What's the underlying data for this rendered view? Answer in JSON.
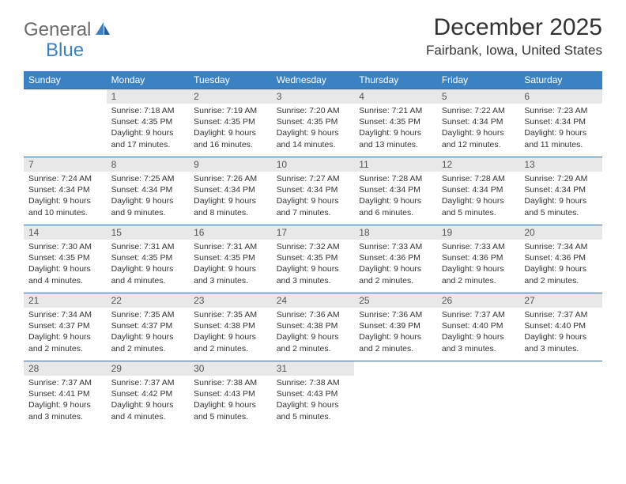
{
  "logo": {
    "general": "General",
    "blue": "Blue"
  },
  "title": "December 2025",
  "location": "Fairbank, Iowa, United States",
  "colors": {
    "header_bg": "#3b82c4",
    "header_text": "#ffffff",
    "daynum_bg": "#e8e8e8",
    "border": "#3b6a9a",
    "logo_gray": "#6b6b6b",
    "logo_blue": "#3b82c4"
  },
  "day_names": [
    "Sunday",
    "Monday",
    "Tuesday",
    "Wednesday",
    "Thursday",
    "Friday",
    "Saturday"
  ],
  "first_weekday_offset": 1,
  "days": [
    {
      "n": 1,
      "sunrise": "7:18 AM",
      "sunset": "4:35 PM",
      "daylight": "9 hours and 17 minutes."
    },
    {
      "n": 2,
      "sunrise": "7:19 AM",
      "sunset": "4:35 PM",
      "daylight": "9 hours and 16 minutes."
    },
    {
      "n": 3,
      "sunrise": "7:20 AM",
      "sunset": "4:35 PM",
      "daylight": "9 hours and 14 minutes."
    },
    {
      "n": 4,
      "sunrise": "7:21 AM",
      "sunset": "4:35 PM",
      "daylight": "9 hours and 13 minutes."
    },
    {
      "n": 5,
      "sunrise": "7:22 AM",
      "sunset": "4:34 PM",
      "daylight": "9 hours and 12 minutes."
    },
    {
      "n": 6,
      "sunrise": "7:23 AM",
      "sunset": "4:34 PM",
      "daylight": "9 hours and 11 minutes."
    },
    {
      "n": 7,
      "sunrise": "7:24 AM",
      "sunset": "4:34 PM",
      "daylight": "9 hours and 10 minutes."
    },
    {
      "n": 8,
      "sunrise": "7:25 AM",
      "sunset": "4:34 PM",
      "daylight": "9 hours and 9 minutes."
    },
    {
      "n": 9,
      "sunrise": "7:26 AM",
      "sunset": "4:34 PM",
      "daylight": "9 hours and 8 minutes."
    },
    {
      "n": 10,
      "sunrise": "7:27 AM",
      "sunset": "4:34 PM",
      "daylight": "9 hours and 7 minutes."
    },
    {
      "n": 11,
      "sunrise": "7:28 AM",
      "sunset": "4:34 PM",
      "daylight": "9 hours and 6 minutes."
    },
    {
      "n": 12,
      "sunrise": "7:28 AM",
      "sunset": "4:34 PM",
      "daylight": "9 hours and 5 minutes."
    },
    {
      "n": 13,
      "sunrise": "7:29 AM",
      "sunset": "4:34 PM",
      "daylight": "9 hours and 5 minutes."
    },
    {
      "n": 14,
      "sunrise": "7:30 AM",
      "sunset": "4:35 PM",
      "daylight": "9 hours and 4 minutes."
    },
    {
      "n": 15,
      "sunrise": "7:31 AM",
      "sunset": "4:35 PM",
      "daylight": "9 hours and 4 minutes."
    },
    {
      "n": 16,
      "sunrise": "7:31 AM",
      "sunset": "4:35 PM",
      "daylight": "9 hours and 3 minutes."
    },
    {
      "n": 17,
      "sunrise": "7:32 AM",
      "sunset": "4:35 PM",
      "daylight": "9 hours and 3 minutes."
    },
    {
      "n": 18,
      "sunrise": "7:33 AM",
      "sunset": "4:36 PM",
      "daylight": "9 hours and 2 minutes."
    },
    {
      "n": 19,
      "sunrise": "7:33 AM",
      "sunset": "4:36 PM",
      "daylight": "9 hours and 2 minutes."
    },
    {
      "n": 20,
      "sunrise": "7:34 AM",
      "sunset": "4:36 PM",
      "daylight": "9 hours and 2 minutes."
    },
    {
      "n": 21,
      "sunrise": "7:34 AM",
      "sunset": "4:37 PM",
      "daylight": "9 hours and 2 minutes."
    },
    {
      "n": 22,
      "sunrise": "7:35 AM",
      "sunset": "4:37 PM",
      "daylight": "9 hours and 2 minutes."
    },
    {
      "n": 23,
      "sunrise": "7:35 AM",
      "sunset": "4:38 PM",
      "daylight": "9 hours and 2 minutes."
    },
    {
      "n": 24,
      "sunrise": "7:36 AM",
      "sunset": "4:38 PM",
      "daylight": "9 hours and 2 minutes."
    },
    {
      "n": 25,
      "sunrise": "7:36 AM",
      "sunset": "4:39 PM",
      "daylight": "9 hours and 2 minutes."
    },
    {
      "n": 26,
      "sunrise": "7:37 AM",
      "sunset": "4:40 PM",
      "daylight": "9 hours and 3 minutes."
    },
    {
      "n": 27,
      "sunrise": "7:37 AM",
      "sunset": "4:40 PM",
      "daylight": "9 hours and 3 minutes."
    },
    {
      "n": 28,
      "sunrise": "7:37 AM",
      "sunset": "4:41 PM",
      "daylight": "9 hours and 3 minutes."
    },
    {
      "n": 29,
      "sunrise": "7:37 AM",
      "sunset": "4:42 PM",
      "daylight": "9 hours and 4 minutes."
    },
    {
      "n": 30,
      "sunrise": "7:38 AM",
      "sunset": "4:43 PM",
      "daylight": "9 hours and 5 minutes."
    },
    {
      "n": 31,
      "sunrise": "7:38 AM",
      "sunset": "4:43 PM",
      "daylight": "9 hours and 5 minutes."
    }
  ],
  "labels": {
    "sunrise": "Sunrise:",
    "sunset": "Sunset:",
    "daylight": "Daylight:"
  }
}
